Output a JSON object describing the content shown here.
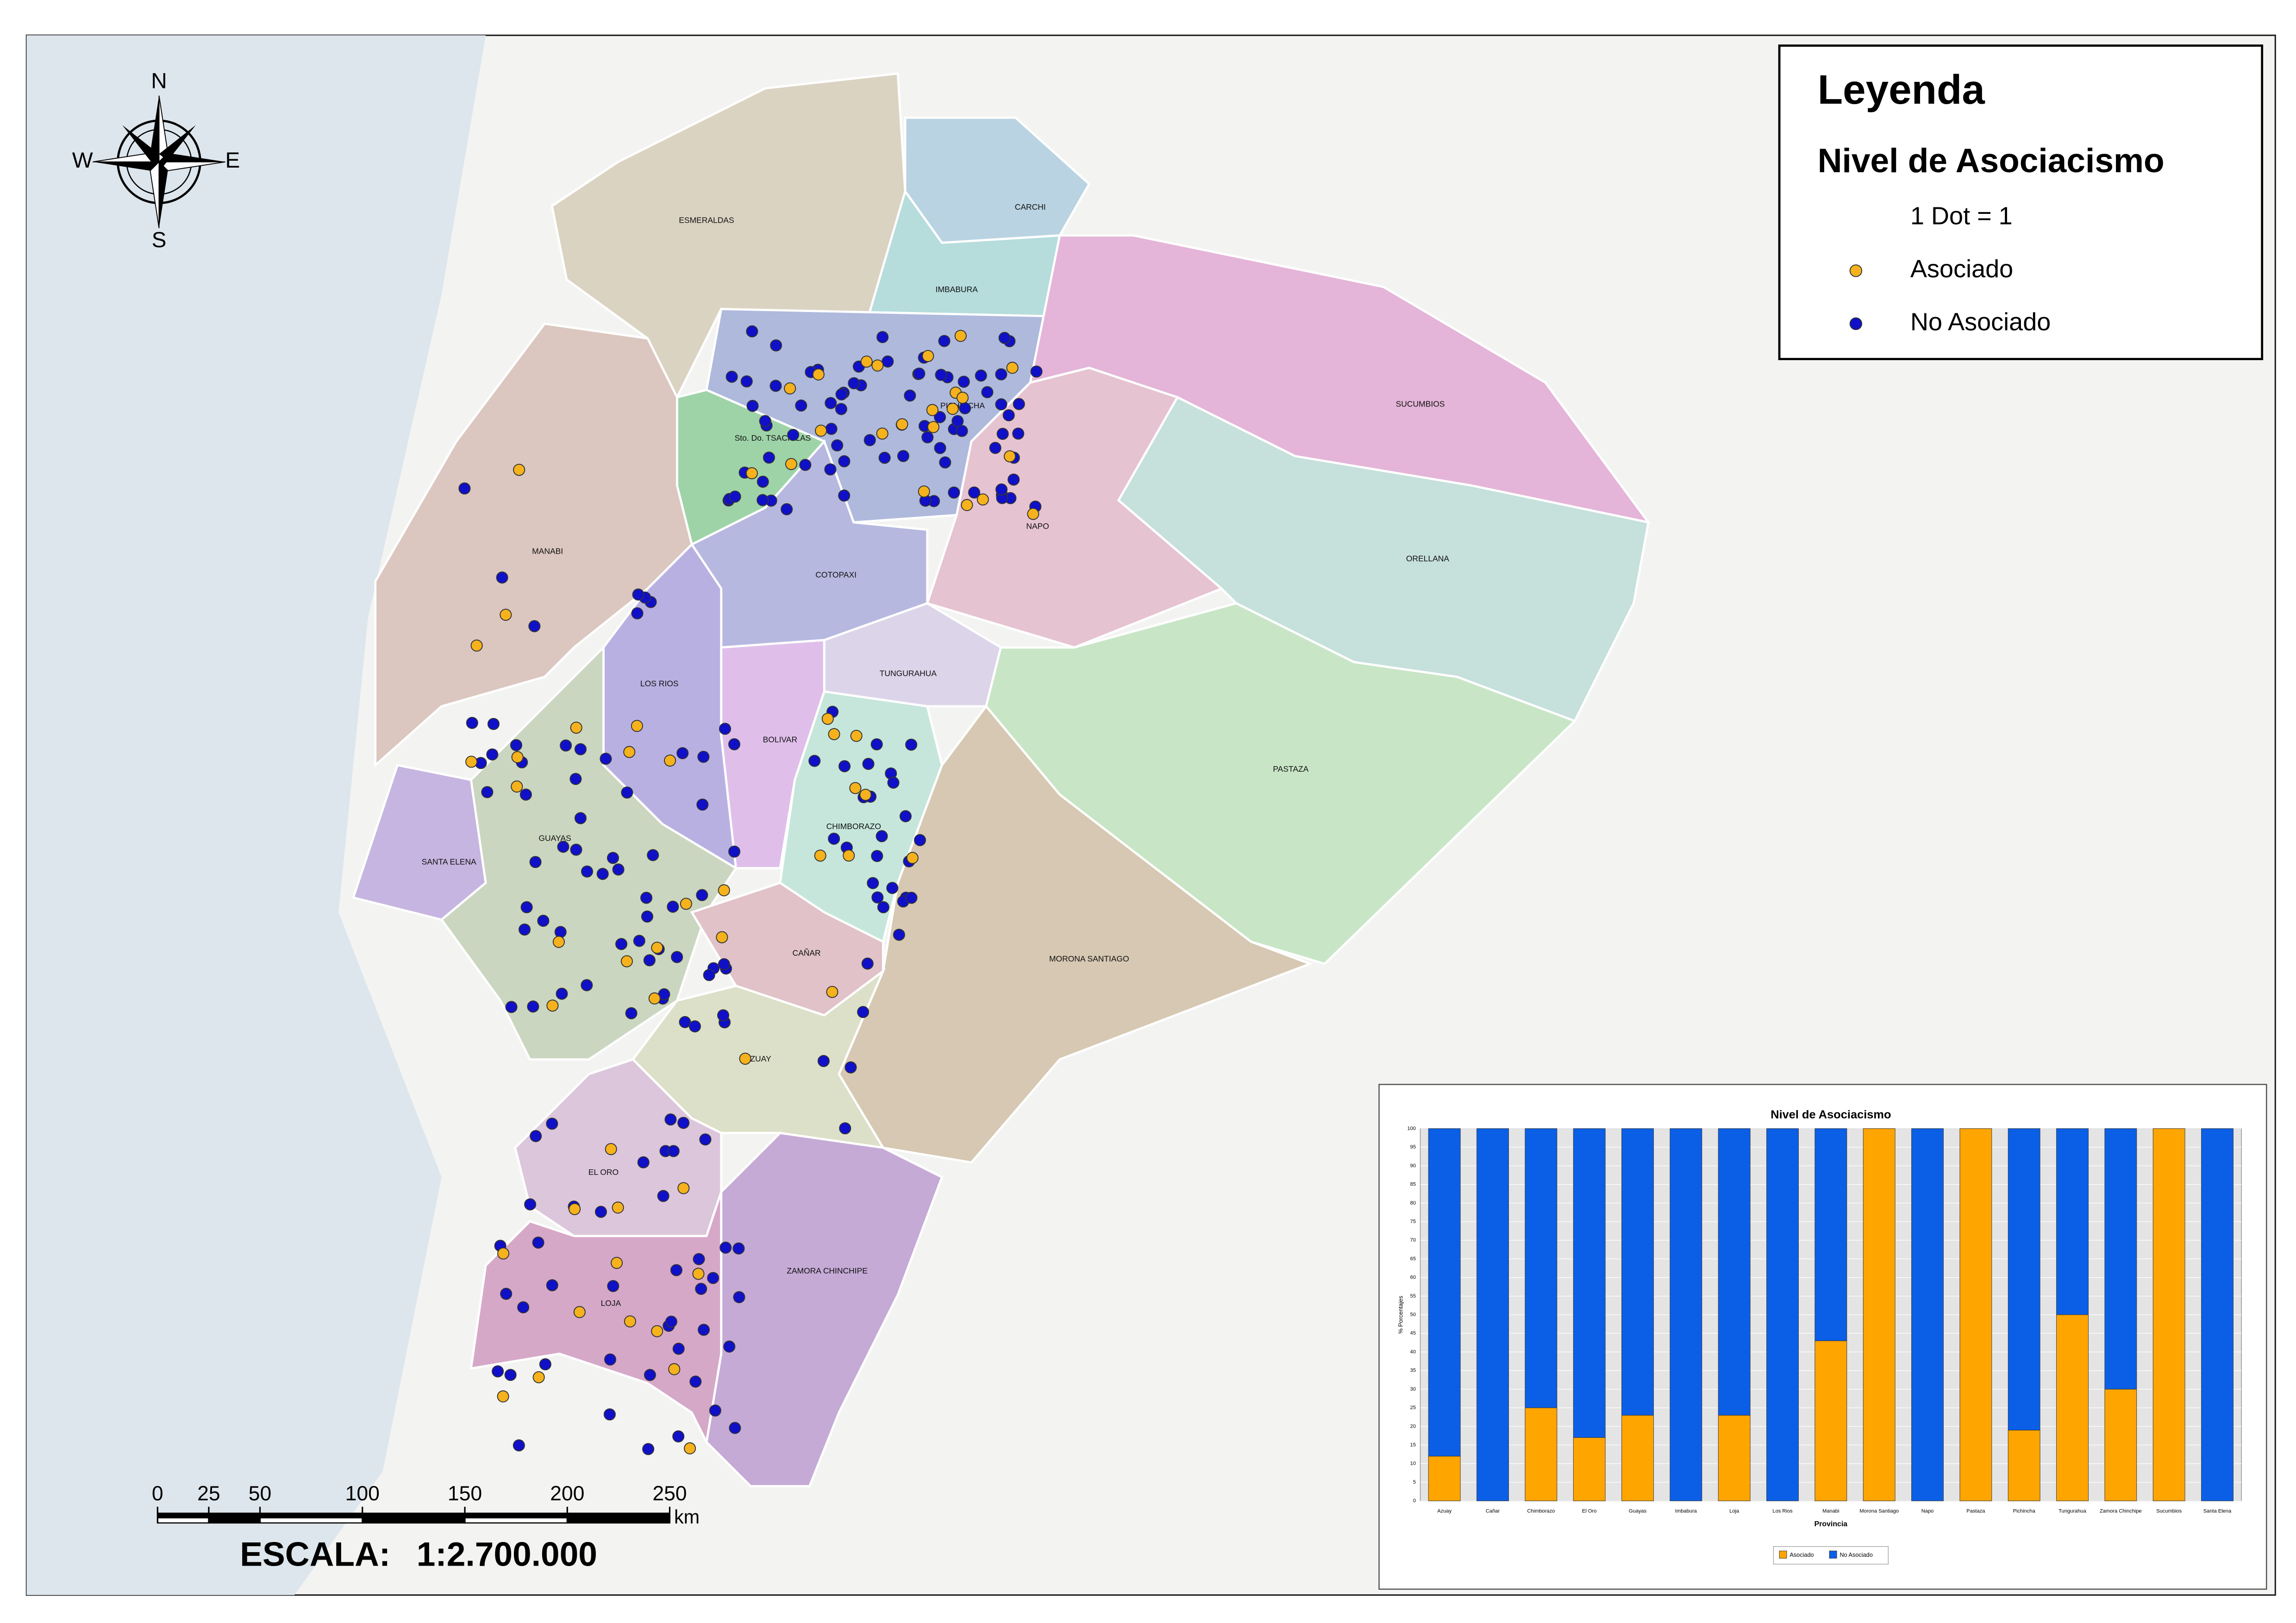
{
  "map": {
    "compass": {
      "n": "N",
      "s": "S",
      "e": "E",
      "w": "W"
    },
    "provinces": [
      "ESMERALDAS",
      "CARCHI",
      "IMBABURA",
      "PICHINCHA",
      "Sto. Do. TSACHILAS",
      "SUCUMBIOS",
      "NAPO",
      "ORELLANA",
      "MANABI",
      "COTOPAXI",
      "LOS RIOS",
      "TUNGURAHUA",
      "BOLIVAR",
      "PASTAZA",
      "SANTA ELENA",
      "GUAYAS",
      "CHIMBORAZO",
      "CAÑAR",
      "MORONA SANTIAGO",
      "AZUAY",
      "EL ORO",
      "ZAMORA CHINCHIPE",
      "LOJA"
    ],
    "legend": {
      "title": "Leyenda",
      "subtitle": "Nivel de Asociacismo",
      "note": "1 Dot = 1",
      "items": [
        {
          "label": "Asociado",
          "color": "#f5b21c"
        },
        {
          "label": "No Asociado",
          "color": "#1010c8"
        }
      ]
    },
    "scale": {
      "ticks": [
        0,
        25,
        50,
        100,
        150,
        200,
        250
      ],
      "unit": "km",
      "label": "ESCALA:",
      "ratio": "1:2.700.000"
    }
  },
  "chart_data": {
    "type": "stacked-bar",
    "title": "Nivel de Asociacismo",
    "x_label": "Provincia",
    "y_label": "% Porcentajes",
    "categories": [
      "Azuay",
      "Cañar",
      "Chimborazo",
      "El Oro",
      "Guayas",
      "Imbabura",
      "Loja",
      "Los Rios",
      "Manabi",
      "Morona Santiago",
      "Napo",
      "Pastaza",
      "Pichincha",
      "Tungurahua",
      "Zamora Chinchipe",
      "Sucumbios",
      "Santa Elena"
    ],
    "series": [
      {
        "name": "Asociado",
        "color": "#ffa500",
        "values": [
          12,
          0,
          25,
          17,
          23,
          0,
          23,
          0,
          43,
          100,
          0,
          100,
          19,
          50,
          30,
          100,
          0
        ]
      },
      {
        "name": "No Asociado",
        "color": "#0a5fe6",
        "values": [
          88,
          100,
          75,
          83,
          77,
          100,
          77,
          100,
          57,
          0,
          100,
          0,
          81,
          50,
          70,
          0,
          100
        ]
      }
    ],
    "ylim": [
      0,
      100
    ],
    "yticks": [
      0,
      5,
      10,
      15,
      20,
      25,
      30,
      35,
      40,
      45,
      50,
      55,
      60,
      65,
      70,
      75,
      80,
      85,
      90,
      95,
      100
    ],
    "grid": true,
    "legend": "bottom"
  }
}
